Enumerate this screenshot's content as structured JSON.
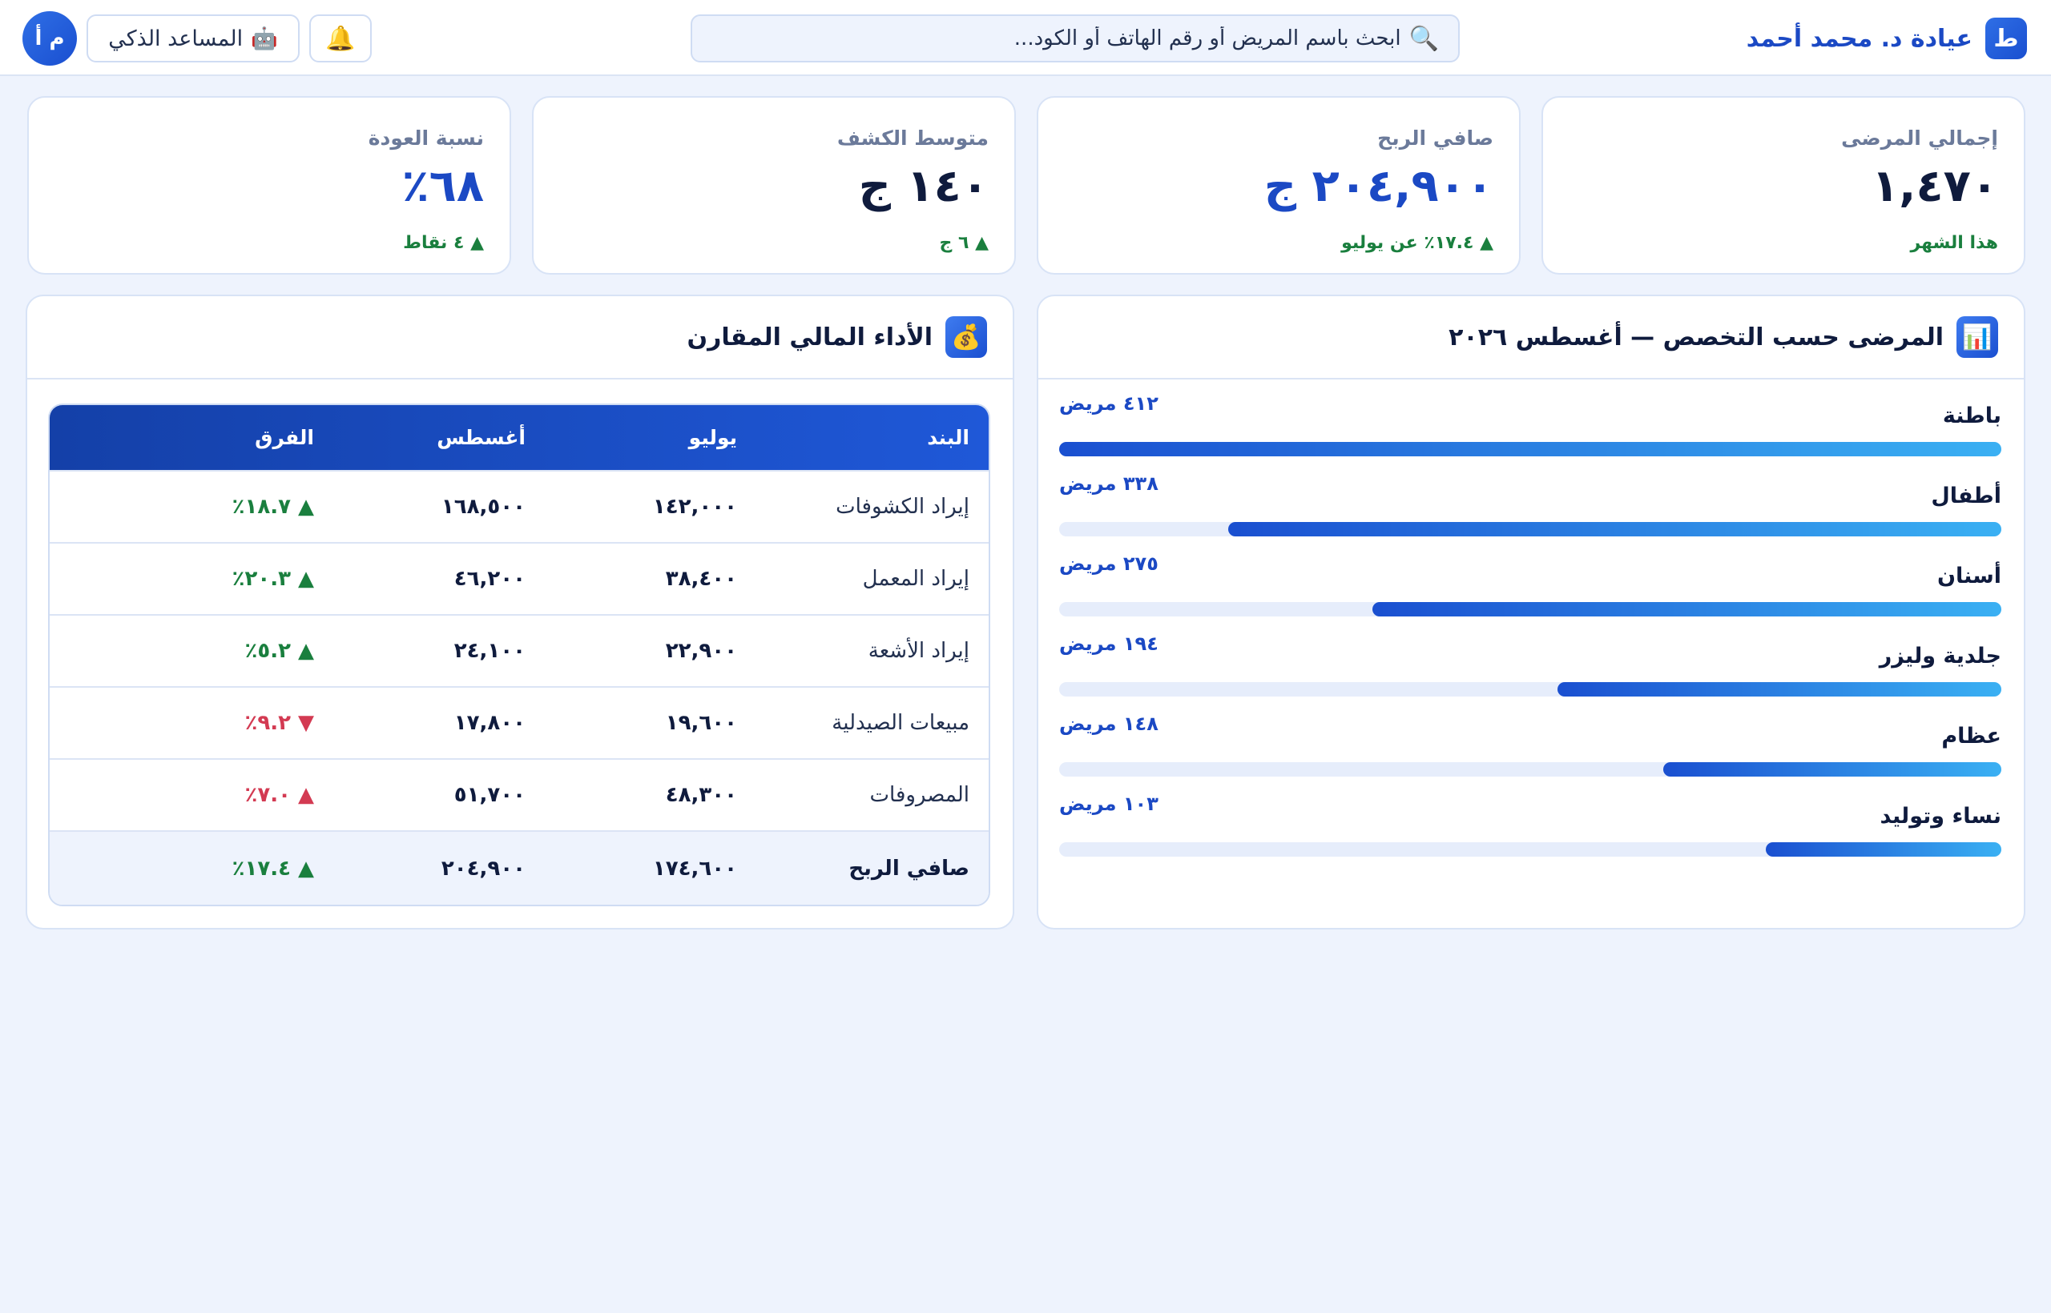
{
  "header": {
    "brand_letter": "ط",
    "brand_name": "عيادة د. محمد أحمد",
    "search_placeholder": "ابحث باسم المريض أو رقم الهاتف أو الكود...",
    "search_icon": "search-icon",
    "bell_icon": "🔔",
    "assistant_icon": "🤖",
    "assistant_label": "المساعد الذكي",
    "avatar_initials": "م أ"
  },
  "kpis": [
    {
      "label": "إجمالي المرضى",
      "value": "١,٤٧٠",
      "sub": "هذا الشهر",
      "accent": "navy"
    },
    {
      "label": "صافي الربح",
      "value": "٢٠٤,٩٠٠ ج",
      "sub": "▲ ١٧.٤٪ عن يوليو",
      "accent": "blue"
    },
    {
      "label": "متوسط الكشف",
      "value": "١٤٠ ج",
      "sub": "▲ ٦ ج",
      "accent": "navy"
    },
    {
      "label": "نسبة العودة",
      "value": "٦٨٪",
      "sub": "▲ ٤ نقاط",
      "accent": "blue"
    }
  ],
  "specialties_panel": {
    "icon": "📊",
    "title": "المرضى حسب التخصص — أغسطس ٢٠٢٦",
    "count_suffix": "مريض",
    "max_value": 412,
    "items": [
      {
        "name": "باطنة",
        "count_label": "٤١٢ مريض",
        "value": 412
      },
      {
        "name": "أطفال",
        "count_label": "٣٣٨ مريض",
        "value": 338
      },
      {
        "name": "أسنان",
        "count_label": "٢٧٥ مريض",
        "value": 275
      },
      {
        "name": "جلدية وليزر",
        "count_label": "١٩٤ مريض",
        "value": 194
      },
      {
        "name": "عظام",
        "count_label": "١٤٨ مريض",
        "value": 148
      },
      {
        "name": "نساء وتوليد",
        "count_label": "١٠٣ مريض",
        "value": 103
      }
    ]
  },
  "finance_panel": {
    "icon": "💰",
    "title": "الأداء المالي المقارن",
    "headers": [
      "البند",
      "يوليو",
      "أغسطس",
      "الفرق"
    ],
    "rows": [
      {
        "item": "إيراد الكشوفات",
        "july": "١٤٢,٠٠٠",
        "august": "١٦٨,٥٠٠",
        "diff": "▲ ١٨.٧٪",
        "trend": "up"
      },
      {
        "item": "إيراد المعمل",
        "july": "٣٨,٤٠٠",
        "august": "٤٦,٢٠٠",
        "diff": "▲ ٢٠.٣٪",
        "trend": "up"
      },
      {
        "item": "إيراد الأشعة",
        "july": "٢٢,٩٠٠",
        "august": "٢٤,١٠٠",
        "diff": "▲ ٥.٢٪",
        "trend": "up"
      },
      {
        "item": "مبيعات الصيدلية",
        "july": "١٩,٦٠٠",
        "august": "١٧,٨٠٠",
        "diff": "▼ ٩.٢٪",
        "trend": "down"
      },
      {
        "item": "المصروفات",
        "july": "٤٨,٣٠٠",
        "august": "٥١,٧٠٠",
        "diff": "▲ ٧.٠٪",
        "trend": "down"
      }
    ],
    "total": {
      "item": "صافي الربح",
      "july": "١٧٤,٦٠٠",
      "august": "٢٠٤,٩٠٠",
      "diff": "▲ ١٧.٤٪",
      "trend": "up"
    }
  },
  "colors": {
    "brand_blue": "#1b49c4",
    "positive": "#1a7f3e",
    "negative": "#d33a52",
    "background": "#eef3fd"
  }
}
